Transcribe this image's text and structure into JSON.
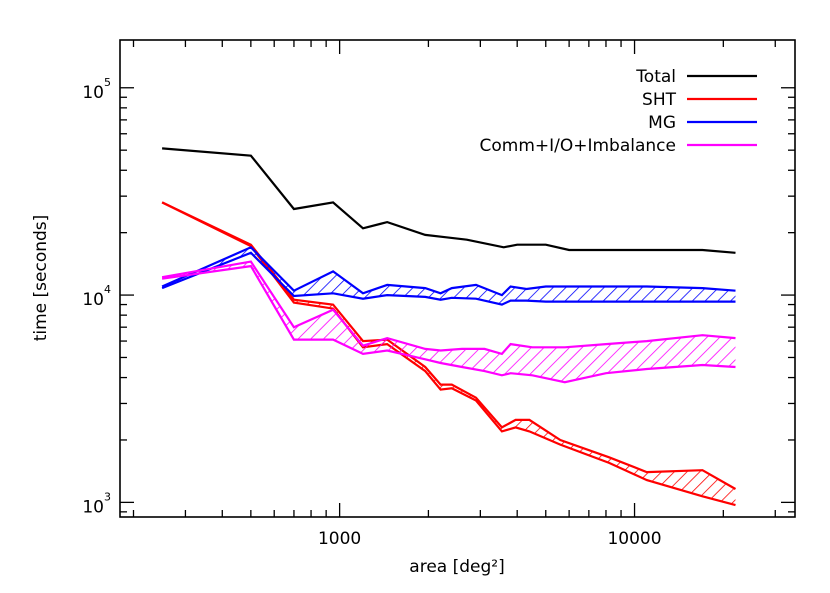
{
  "chart_data": {
    "type": "line",
    "xlabel": "area [deg²]",
    "ylabel": "time [seconds]",
    "x_scale": "log",
    "y_scale": "log",
    "xlim": [
      180,
      35000
    ],
    "ylim": [
      850,
      170000
    ],
    "x_ticks": [
      {
        "value": 1000,
        "label": "1000"
      },
      {
        "value": 10000,
        "label": "10000"
      }
    ],
    "y_ticks": [
      {
        "value": 1000,
        "base": "10",
        "exp": "3"
      },
      {
        "value": 10000,
        "base": "10",
        "exp": "4"
      },
      {
        "value": 100000,
        "base": "10",
        "exp": "5"
      }
    ],
    "legend_position": "top-right",
    "series": [
      {
        "name": "Total",
        "color": "#000000",
        "style": "line",
        "x": [
          250,
          500,
          700,
          950,
          1200,
          1450,
          1950,
          2300,
          2700,
          3600,
          4000,
          5000,
          6000,
          11000,
          17000,
          22000
        ],
        "values": [
          51000,
          47000,
          26000,
          28000,
          21000,
          22500,
          19500,
          19000,
          18500,
          17000,
          17500,
          17500,
          16500,
          16500,
          16500,
          16000
        ]
      },
      {
        "name": "SHT",
        "color": "#ff0000",
        "style": "band",
        "x": [
          250,
          500,
          700,
          950,
          1200,
          1450,
          1950,
          2200,
          2400,
          2900,
          3550,
          3950,
          4400,
          5600,
          8200,
          11000,
          17000,
          22000
        ],
        "upper": [
          28000,
          17500,
          9500,
          9000,
          6000,
          6100,
          4500,
          3700,
          3700,
          3200,
          2300,
          2500,
          2500,
          2000,
          1650,
          1400,
          1430,
          1160
        ],
        "lower": [
          28000,
          17200,
          9200,
          8600,
          5600,
          5800,
          4300,
          3500,
          3550,
          3100,
          2200,
          2300,
          2200,
          1900,
          1550,
          1280,
          1070,
          970
        ]
      },
      {
        "name": "MG",
        "color": "#0000ff",
        "style": "band",
        "x": [
          250,
          500,
          700,
          950,
          1200,
          1450,
          1950,
          2200,
          2400,
          2900,
          3550,
          3800,
          4300,
          5000,
          8000,
          11000,
          17000,
          22000
        ],
        "upper": [
          11000,
          17000,
          10500,
          13000,
          10200,
          11200,
          10800,
          10200,
          10800,
          11200,
          10000,
          11000,
          10700,
          11000,
          11000,
          11000,
          10800,
          10500
        ],
        "lower": [
          10800,
          16000,
          9900,
          10200,
          9600,
          10000,
          9800,
          9500,
          9700,
          9600,
          9000,
          9400,
          9400,
          9300,
          9300,
          9300,
          9300,
          9300
        ]
      },
      {
        "name": "Comm+I/O+Imbalance",
        "color": "#ff00ff",
        "style": "band",
        "x": [
          250,
          500,
          700,
          950,
          1200,
          1450,
          1950,
          2200,
          2600,
          3100,
          3550,
          3800,
          4500,
          5800,
          8000,
          11000,
          17000,
          22000
        ],
        "upper": [
          12200,
          14500,
          7000,
          8500,
          5700,
          6200,
          5500,
          5400,
          5500,
          5500,
          5200,
          5800,
          5600,
          5600,
          5800,
          6000,
          6400,
          6200
        ],
        "lower": [
          12000,
          13800,
          6100,
          6100,
          5200,
          5400,
          4900,
          4700,
          4500,
          4300,
          4100,
          4200,
          4100,
          3800,
          4200,
          4400,
          4600,
          4500
        ]
      }
    ]
  }
}
